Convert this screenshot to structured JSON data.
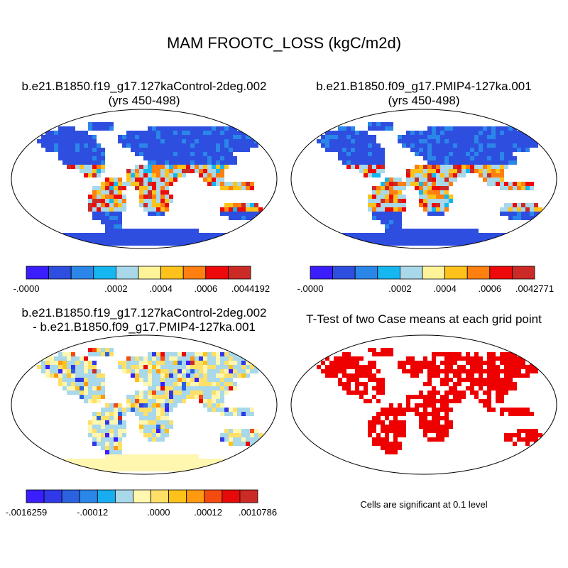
{
  "title": "MAM FROOTC_LOSS (kgC/m2d)",
  "chart_data": [
    {
      "type": "heatmap",
      "title_line1": "b.e21.B1850.f19_g17.127kaControl-2deg.002",
      "title_line2": "(yrs 450-498)",
      "colorbar": {
        "colors": [
          "#3a1eff",
          "#2e4ee0",
          "#2a86e8",
          "#16b6f0",
          "#a8d8ea",
          "#fff39a",
          "#ffc21a",
          "#ff7f10",
          "#ee0a0a",
          "#cc2a26"
        ],
        "labels": [
          "-.0000",
          "",
          "",
          "",
          ".0002",
          "",
          ".0004",
          "",
          ".0006",
          "",
          ".0044192"
        ]
      }
    },
    {
      "type": "heatmap",
      "title_line1": "b.e21.B1850.f09_g17.PMIP4-127ka.001",
      "title_line2": "(yrs 450-498)",
      "colorbar": {
        "colors": [
          "#3a1eff",
          "#2e4ee0",
          "#2a86e8",
          "#16b6f0",
          "#a8d8ea",
          "#fff39a",
          "#ffc21a",
          "#ff7f10",
          "#ee0a0a",
          "#cc2a26"
        ],
        "labels": [
          "-.0000",
          "",
          "",
          "",
          ".0002",
          "",
          ".0004",
          "",
          ".0006",
          "",
          ".0042771"
        ]
      }
    },
    {
      "type": "heatmap",
      "title_line1": "b.e21.B1850.f19_g17.127kaControl-2deg.002",
      "title_line2": "- b.e21.B1850.f09_g17.PMIP4-127ka.001",
      "colorbar": {
        "colors": [
          "#3a1eff",
          "#3138e8",
          "#2a62e0",
          "#2a86e8",
          "#16aef0",
          "#a8d8ea",
          "#fff6b0",
          "#ffe066",
          "#ffc21a",
          "#ff9a10",
          "#f54a10",
          "#e60a0a",
          "#cc2a26"
        ],
        "labels": [
          "-.0016259",
          "",
          "",
          "",
          "-.00012",
          "",
          "",
          "",
          ".0000",
          "",
          "",
          ".00012",
          "",
          "",
          ".0010786"
        ]
      }
    },
    {
      "type": "heatmap",
      "title_line1": "T-Test of two Case means at each grid point",
      "note": "Cells are significant at 0.1 level",
      "significance_color": "#ee0000"
    }
  ]
}
